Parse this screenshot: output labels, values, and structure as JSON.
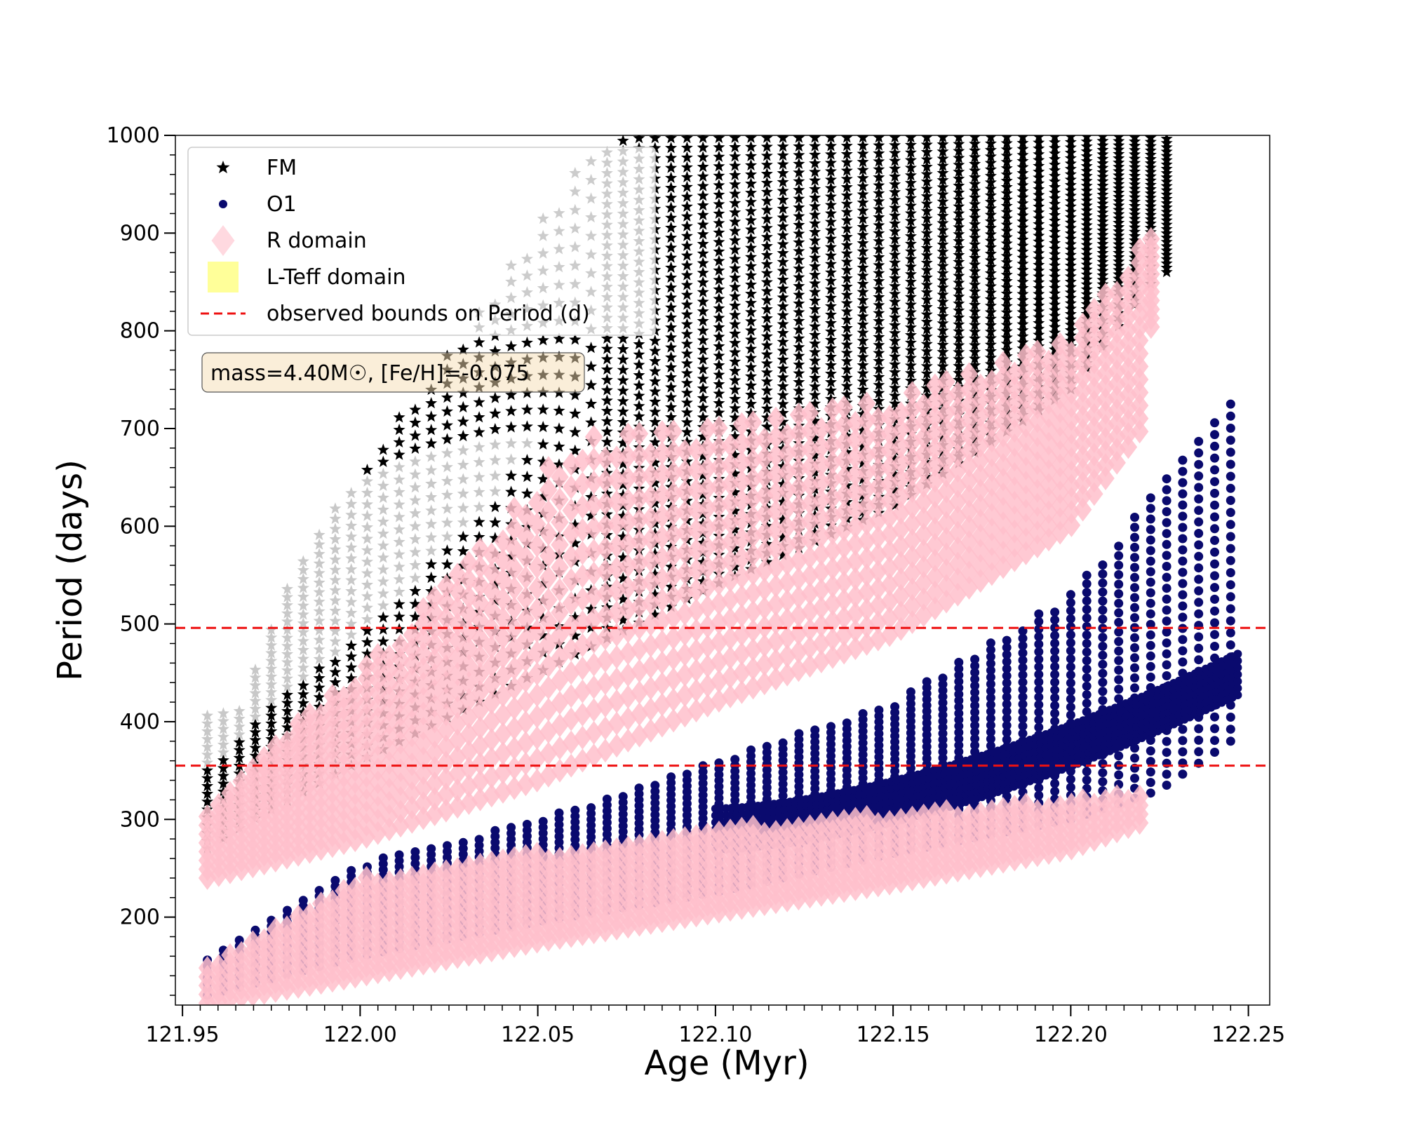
{
  "chart_data": {
    "type": "scatter",
    "xlabel": "Age (Myr)",
    "ylabel": "Period (days)",
    "xlim": [
      121.948,
      122.256
    ],
    "ylim": [
      110,
      1000
    ],
    "xticks": [
      "121.95",
      "122.00",
      "122.05",
      "122.10",
      "122.15",
      "122.20",
      "122.25"
    ],
    "xtick_values": [
      121.95,
      122.0,
      122.05,
      122.1,
      122.15,
      122.2,
      122.25
    ],
    "yticks": [
      "200",
      "300",
      "400",
      "500",
      "600",
      "700",
      "800",
      "900",
      "1000"
    ],
    "ytick_values": [
      200,
      300,
      400,
      500,
      600,
      700,
      800,
      900,
      1000
    ],
    "grid": false,
    "legend_placement": "top-left",
    "legend": [
      {
        "label": "FM",
        "marker": "star",
        "color": "#000000"
      },
      {
        "label": "O1",
        "marker": "circle",
        "color": "#0a0a6e"
      },
      {
        "label": "R domain",
        "marker": "diamond",
        "color": "#ffc0cb"
      },
      {
        "label": "L-Teff domain",
        "marker": "square",
        "color": "#ffff80"
      },
      {
        "label": "observed bounds on Period (d)",
        "marker": "dashed-line",
        "color": "#ee1111"
      }
    ],
    "annotation": "mass=4.40M☉, [Fe/H]=-0.075",
    "observed_bounds": [
      496,
      355
    ],
    "series": [
      {
        "name": "FM",
        "marker": "star",
        "color": "#000000",
        "age_range": [
          121.957,
          122.23
        ],
        "period_lower_edge": [
          [
            121.957,
            270
          ],
          [
            121.97,
            300
          ],
          [
            122.0,
            360
          ],
          [
            122.05,
            450
          ],
          [
            122.1,
            540
          ],
          [
            122.15,
            620
          ],
          [
            122.2,
            740
          ],
          [
            122.225,
            860
          ]
        ],
        "period_upper_edge": [
          [
            121.965,
            410
          ],
          [
            121.98,
            540
          ],
          [
            122.0,
            660
          ],
          [
            122.03,
            800
          ],
          [
            122.06,
            960
          ],
          [
            122.075,
            1000
          ],
          [
            122.23,
            1000
          ]
        ]
      },
      {
        "name": "O1",
        "marker": "circle",
        "color": "#0a0a6e",
        "age_range": [
          121.957,
          122.248
        ],
        "period_lower_edge": [
          [
            121.957,
            120
          ],
          [
            122.0,
            160
          ],
          [
            122.05,
            195
          ],
          [
            122.1,
            225
          ],
          [
            122.15,
            265
          ],
          [
            122.2,
            300
          ],
          [
            122.225,
            330
          ],
          [
            122.245,
            380
          ]
        ],
        "period_upper_edge": [
          [
            121.957,
            160
          ],
          [
            122.0,
            255
          ],
          [
            122.05,
            300
          ],
          [
            122.1,
            360
          ],
          [
            122.15,
            420
          ],
          [
            122.2,
            530
          ],
          [
            122.225,
            640
          ],
          [
            122.245,
            725
          ]
        ]
      },
      {
        "name": "R domain",
        "marker": "diamond",
        "color": "#ffc0cb",
        "bands": [
          {
            "upper": [
              [
                121.957,
                310
              ],
              [
                121.97,
                360
              ],
              [
                122.0,
                450
              ],
              [
                122.03,
                560
              ],
              [
                122.06,
                690
              ],
              [
                122.1,
                700
              ],
              [
                122.15,
                730
              ],
              [
                122.2,
                790
              ],
              [
                122.225,
                910
              ]
            ],
            "lower": [
              [
                121.957,
                240
              ],
              [
                122.0,
                280
              ],
              [
                122.05,
                340
              ],
              [
                122.1,
                420
              ],
              [
                122.15,
                490
              ],
              [
                122.2,
                600
              ],
              [
                122.22,
                700
              ],
              [
                122.225,
                900
              ]
            ]
          },
          {
            "upper": [
              [
                121.957,
                150
              ],
              [
                122.0,
                240
              ],
              [
                122.05,
                265
              ],
              [
                122.1,
                290
              ],
              [
                122.15,
                305
              ],
              [
                122.2,
                320
              ],
              [
                122.222,
                330
              ]
            ],
            "lower": [
              [
                121.957,
                112
              ],
              [
                122.0,
                140
              ],
              [
                122.05,
                175
              ],
              [
                122.1,
                205
              ],
              [
                122.15,
                235
              ],
              [
                122.2,
                270
              ],
              [
                122.222,
                300
              ]
            ]
          }
        ]
      }
    ]
  }
}
